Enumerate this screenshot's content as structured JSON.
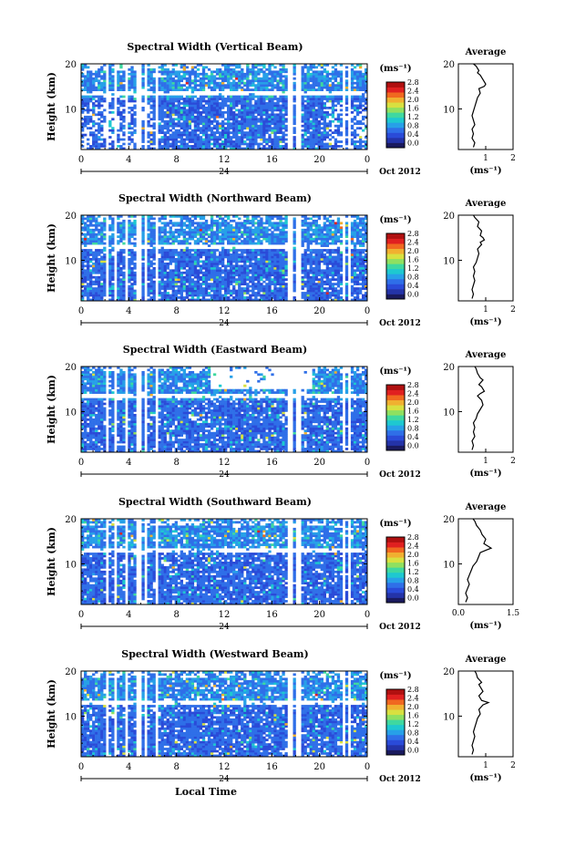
{
  "figure": {
    "xlabel_bottom": "Local Time",
    "date_label": "Oct 2012",
    "day_label": "24",
    "height_label": "Height (km)",
    "unit_label": "(ms⁻¹)",
    "average_title": "Average",
    "colormap": [
      "#1a1a5e",
      "#2433a8",
      "#2a4bd8",
      "#2f6fe8",
      "#27a0e8",
      "#1ec8d0",
      "#3fd8a0",
      "#8fe060",
      "#d8e040",
      "#f0b030",
      "#f06820",
      "#e02020",
      "#b01010"
    ]
  },
  "chart_data": [
    {
      "type": "heatmap",
      "title": "Spectral Width (Vertical Beam)",
      "xlabel": "",
      "ylabel": "Height (km)",
      "x_ticks": [
        "0",
        "4",
        "8",
        "12",
        "16",
        "20",
        "0"
      ],
      "y_ticks": [
        "20",
        "10"
      ],
      "xlim": [
        0,
        24
      ],
      "ylim": [
        1,
        20
      ],
      "colorbar": {
        "ticks": [
          "2.8",
          "2.4",
          "2.0",
          "1.6",
          "1.2",
          "0.8",
          "0.4",
          "0.0"
        ],
        "range": [
          0,
          2.8
        ]
      },
      "average_profile": {
        "x_ticks": [
          "1",
          "2"
        ],
        "y_ticks": [
          "20",
          "10"
        ],
        "xlim": [
          0,
          2
        ],
        "xlabel": "(ms⁻¹)",
        "values": [
          0.55,
          0.6,
          0.5,
          0.55,
          0.5,
          0.6,
          0.55,
          0.5,
          0.55,
          0.6,
          0.65,
          0.7,
          0.8,
          0.75,
          0.95,
          1.0,
          0.9,
          0.8,
          0.7,
          0.75,
          0.65,
          0.55
        ],
        "heights": [
          1.5,
          2.5,
          3.5,
          4.5,
          5.5,
          6.5,
          7.5,
          8.5,
          9.5,
          10.5,
          11.5,
          12.5,
          13.5,
          14.5,
          15.0,
          15.5,
          16.5,
          17.5,
          18.0,
          18.5,
          19.5,
          20
        ]
      }
    },
    {
      "type": "heatmap",
      "title": "Spectral Width (Northward Beam)",
      "xlabel": "",
      "ylabel": "Height (km)",
      "x_ticks": [
        "0",
        "4",
        "8",
        "12",
        "16",
        "20",
        "0"
      ],
      "y_ticks": [
        "20",
        "10"
      ],
      "xlim": [
        0,
        24
      ],
      "ylim": [
        1,
        20
      ],
      "colorbar": {
        "ticks": [
          "2.8",
          "2.4",
          "2.0",
          "1.6",
          "1.2",
          "0.8",
          "0.4",
          "0.0"
        ],
        "range": [
          0,
          2.8
        ]
      },
      "average_profile": {
        "x_ticks": [
          "1",
          "2"
        ],
        "y_ticks": [
          "20",
          "10"
        ],
        "xlim": [
          0,
          2
        ],
        "xlabel": "(ms⁻¹)",
        "values": [
          0.5,
          0.55,
          0.5,
          0.55,
          0.6,
          0.55,
          0.6,
          0.55,
          0.65,
          0.7,
          0.75,
          0.7,
          0.85,
          0.8,
          0.95,
          0.9,
          0.8,
          0.85,
          0.7,
          0.75,
          0.6,
          0.55
        ],
        "heights": [
          1.5,
          2.5,
          3.5,
          4.5,
          5.5,
          6.5,
          7.5,
          8.5,
          9.5,
          10.5,
          11.5,
          12.5,
          13.5,
          14.0,
          14.5,
          15.0,
          15.5,
          16.5,
          17.5,
          18.5,
          19.5,
          20
        ]
      }
    },
    {
      "type": "heatmap",
      "title": "Spectral Width (Eastward Beam)",
      "xlabel": "",
      "ylabel": "Height (km)",
      "x_ticks": [
        "0",
        "4",
        "8",
        "12",
        "16",
        "20",
        "0"
      ],
      "y_ticks": [
        "20",
        "10"
      ],
      "xlim": [
        0,
        24
      ],
      "ylim": [
        1,
        20
      ],
      "colorbar": {
        "ticks": [
          "2.8",
          "2.4",
          "2.0",
          "1.6",
          "1.2",
          "0.8",
          "0.4",
          "0.0"
        ],
        "range": [
          0,
          2.8
        ]
      },
      "average_profile": {
        "x_ticks": [
          "1",
          "2"
        ],
        "y_ticks": [
          "20",
          "10"
        ],
        "xlim": [
          0,
          2
        ],
        "xlabel": "(ms⁻¹)",
        "values": [
          0.5,
          0.55,
          0.5,
          0.6,
          0.55,
          0.6,
          0.55,
          0.65,
          0.7,
          0.8,
          0.9,
          0.85,
          0.7,
          0.8,
          0.95,
          0.85,
          0.75,
          0.9,
          0.8,
          0.7,
          0.65,
          0.6
        ],
        "heights": [
          1.5,
          2.5,
          3.5,
          4.5,
          5.5,
          6.5,
          7.5,
          8.5,
          9.5,
          10.5,
          11.5,
          12.5,
          13.5,
          14.0,
          14.5,
          15.5,
          16.0,
          17.0,
          17.5,
          18.5,
          19.5,
          20
        ]
      }
    },
    {
      "type": "heatmap",
      "title": "Spectral Width (Southward Beam)",
      "xlabel": "",
      "ylabel": "Height (km)",
      "x_ticks": [
        "0",
        "4",
        "8",
        "12",
        "16",
        "20",
        "0"
      ],
      "y_ticks": [
        "20",
        "10"
      ],
      "xlim": [
        0,
        24
      ],
      "ylim": [
        1,
        20
      ],
      "colorbar": {
        "ticks": [
          "2.8",
          "2.4",
          "2.0",
          "1.6",
          "1.2",
          "0.8",
          "0.4",
          "0.0"
        ],
        "range": [
          0,
          2.8
        ]
      },
      "average_profile": {
        "x_ticks": [
          "0.0",
          "1.5"
        ],
        "y_ticks": [
          "20",
          "10"
        ],
        "xlim": [
          0,
          1.5
        ],
        "xlabel": "(ms⁻¹)",
        "values": [
          0.2,
          0.25,
          0.2,
          0.25,
          0.3,
          0.25,
          0.3,
          0.35,
          0.4,
          0.5,
          0.55,
          0.6,
          0.75,
          0.9,
          0.8,
          0.7,
          0.75,
          0.65,
          0.6,
          0.5,
          0.45,
          0.4
        ],
        "heights": [
          1.5,
          2.5,
          3.5,
          4.5,
          5.5,
          6.5,
          7.5,
          8.5,
          9.5,
          10.5,
          11.5,
          12.5,
          13.0,
          13.5,
          14.0,
          14.5,
          15.5,
          16.5,
          17.5,
          18.5,
          19.5,
          20
        ]
      }
    },
    {
      "type": "heatmap",
      "title": "Spectral Width (Westward Beam)",
      "xlabel": "Local Time",
      "ylabel": "Height (km)",
      "x_ticks": [
        "0",
        "4",
        "8",
        "12",
        "16",
        "20",
        "0"
      ],
      "y_ticks": [
        "20",
        "10"
      ],
      "xlim": [
        0,
        24
      ],
      "ylim": [
        1,
        20
      ],
      "colorbar": {
        "ticks": [
          "2.8",
          "2.4",
          "2.0",
          "1.6",
          "1.2",
          "0.8",
          "0.4",
          "0.0"
        ],
        "range": [
          0,
          2.8
        ]
      },
      "average_profile": {
        "x_ticks": [
          "1",
          "2"
        ],
        "y_ticks": [
          "20",
          "10"
        ],
        "xlim": [
          0,
          2
        ],
        "xlabel": "(ms⁻¹)",
        "values": [
          0.5,
          0.55,
          0.5,
          0.55,
          0.6,
          0.55,
          0.6,
          0.65,
          0.7,
          0.8,
          0.75,
          0.9,
          1.1,
          0.85,
          0.75,
          0.9,
          0.8,
          0.75,
          0.85,
          0.7,
          0.65,
          0.6
        ],
        "heights": [
          1.5,
          2.5,
          3.5,
          4.5,
          5.5,
          6.5,
          7.5,
          8.5,
          9.5,
          10.5,
          11.5,
          12.5,
          13.0,
          13.5,
          14.5,
          15.5,
          16.5,
          17.0,
          17.5,
          18.5,
          19.5,
          20
        ]
      }
    }
  ]
}
